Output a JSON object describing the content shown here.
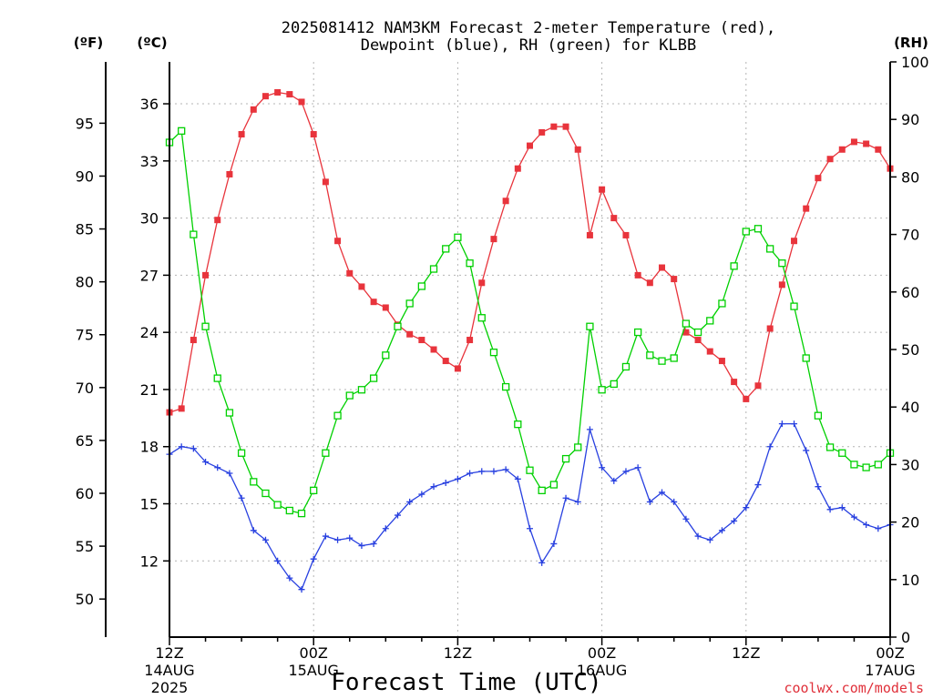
{
  "chart_data": {
    "type": "line",
    "title_line1": "2025081412 NAM3KM Forecast 2-meter Temperature (red),",
    "title_line2": "Dewpoint (blue), RH (green) for KLBB",
    "xlabel": "Forecast Time (UTC)",
    "credit": "coolwx.com/models",
    "unit_labels": {
      "fahrenheit": "(ºF)",
      "celsius": "(ºC)",
      "rh": "(RH)"
    },
    "x_range_hours": [
      0,
      60
    ],
    "x_ticks": [
      {
        "hour": 0,
        "lines": [
          "12Z",
          "14AUG",
          "2025"
        ]
      },
      {
        "hour": 12,
        "lines": [
          "00Z",
          "15AUG"
        ]
      },
      {
        "hour": 24,
        "lines": [
          "12Z"
        ]
      },
      {
        "hour": 36,
        "lines": [
          "00Z",
          "16AUG"
        ]
      },
      {
        "hour": 48,
        "lines": [
          "12Z"
        ]
      },
      {
        "hour": 60,
        "lines": [
          "00Z",
          "17AUG"
        ]
      }
    ],
    "celsius_axis": {
      "range": [
        8.0,
        38.2
      ],
      "ticks": [
        12,
        15,
        18,
        21,
        24,
        27,
        30,
        33,
        36
      ]
    },
    "fahrenheit_axis": {
      "range": [
        46.4,
        100.8
      ],
      "ticks": [
        50,
        55,
        60,
        65,
        70,
        75,
        80,
        85,
        90,
        95
      ]
    },
    "rh_axis": {
      "range": [
        0,
        100
      ],
      "ticks": [
        0,
        10,
        20,
        30,
        40,
        50,
        60,
        70,
        80,
        90,
        100
      ]
    },
    "colors": {
      "temperature": "#e8343c",
      "dewpoint": "#2840e0",
      "rh": "#00d000",
      "axis": "#000000",
      "grid": "#b4b4b4",
      "credit": "#e0303a"
    },
    "series": [
      {
        "key": "temperature",
        "units": "C",
        "marker": "filled-square",
        "x": [
          0,
          1,
          2,
          3,
          4,
          5,
          6,
          7,
          8,
          9,
          10,
          11,
          12,
          13,
          14,
          15,
          16,
          17,
          18,
          19,
          20,
          21,
          22,
          23,
          24,
          25,
          26,
          27,
          28,
          29,
          30,
          31,
          32,
          33,
          34,
          35,
          36,
          37,
          38,
          39,
          40,
          41,
          42,
          43,
          44,
          45,
          46,
          47,
          48,
          49,
          50,
          51,
          52,
          53,
          54,
          55,
          56,
          57,
          58,
          59,
          60
        ],
        "values": [
          19.8,
          20.0,
          23.6,
          27.0,
          29.9,
          32.3,
          34.4,
          35.7,
          36.4,
          36.6,
          36.5,
          36.1,
          34.4,
          31.9,
          28.8,
          27.1,
          26.4,
          25.6,
          25.3,
          24.4,
          23.9,
          23.6,
          23.1,
          22.5,
          22.1,
          23.6,
          26.6,
          28.9,
          30.9,
          32.6,
          33.8,
          34.5,
          34.8,
          34.8,
          33.6,
          29.1,
          31.5,
          30.0,
          29.1,
          27.0,
          26.6,
          27.4,
          26.8,
          24.0,
          23.6,
          23.0,
          22.5,
          21.4,
          20.5,
          21.2,
          24.2,
          26.5,
          28.8,
          30.5,
          32.1,
          33.1,
          33.6,
          34.0,
          33.9,
          33.6,
          32.6
        ]
      },
      {
        "key": "dewpoint",
        "units": "C",
        "marker": "plus",
        "x": [
          0,
          1,
          2,
          3,
          4,
          5,
          6,
          7,
          8,
          9,
          10,
          11,
          12,
          13,
          14,
          15,
          16,
          17,
          18,
          19,
          20,
          21,
          22,
          23,
          24,
          25,
          26,
          27,
          28,
          29,
          30,
          31,
          32,
          33,
          34,
          35,
          36,
          37,
          38,
          39,
          40,
          41,
          42,
          43,
          44,
          45,
          46,
          47,
          48,
          49,
          50,
          51,
          52,
          53,
          54,
          55,
          56,
          57,
          58,
          59,
          60
        ],
        "values": [
          17.6,
          18.0,
          17.9,
          17.2,
          16.9,
          16.6,
          15.3,
          13.6,
          13.1,
          12.0,
          11.1,
          10.5,
          12.1,
          13.3,
          13.1,
          13.2,
          12.8,
          12.9,
          13.7,
          14.4,
          15.1,
          15.5,
          15.9,
          16.1,
          16.3,
          16.6,
          16.7,
          16.7,
          16.8,
          16.3,
          13.7,
          11.9,
          12.9,
          15.3,
          15.1,
          18.9,
          16.9,
          16.2,
          16.7,
          16.9,
          15.1,
          15.6,
          15.1,
          14.2,
          13.3,
          13.1,
          13.6,
          14.1,
          14.8,
          16.0,
          18.0,
          19.2,
          19.2,
          17.8,
          15.9,
          14.7,
          14.8,
          14.3,
          13.9,
          13.7,
          13.9
        ]
      },
      {
        "key": "rh",
        "units": "%",
        "marker": "open-square",
        "x": [
          0,
          1,
          2,
          3,
          4,
          5,
          6,
          7,
          8,
          9,
          10,
          11,
          12,
          13,
          14,
          15,
          16,
          17,
          18,
          19,
          20,
          21,
          22,
          23,
          24,
          25,
          26,
          27,
          28,
          29,
          30,
          31,
          32,
          33,
          34,
          35,
          36,
          37,
          38,
          39,
          40,
          41,
          42,
          43,
          44,
          45,
          46,
          47,
          48,
          49,
          50,
          51,
          52,
          53,
          54,
          55,
          56,
          57,
          58,
          59,
          60
        ],
        "values": [
          86,
          88,
          70,
          54,
          45,
          39,
          32,
          27,
          25,
          23,
          22,
          21.5,
          25.5,
          32,
          38.5,
          42,
          43,
          45,
          49,
          54,
          58,
          61,
          64,
          67.5,
          69.5,
          65,
          55.5,
          49.5,
          43.5,
          37,
          29,
          25.5,
          26.5,
          31,
          33,
          54,
          43,
          44,
          47,
          53,
          49,
          48,
          48.5,
          54.5,
          53,
          55,
          58,
          64.5,
          70.5,
          71,
          67.5,
          65,
          57.5,
          48.5,
          38.5,
          33,
          32,
          30,
          29.5,
          30,
          32
        ]
      }
    ]
  }
}
